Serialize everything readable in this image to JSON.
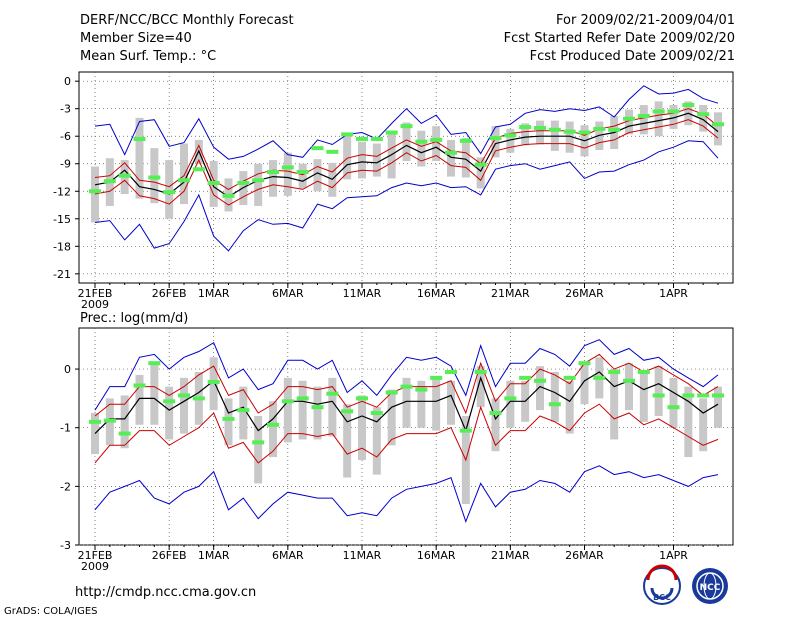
{
  "header": {
    "title": "DERF/NCC/BCC Monthly Forecast",
    "member_size": "Member Size=40",
    "variable": "Mean Surf. Temp.: °C",
    "period": "For 2009/02/21-2009/04/01",
    "start_date": "Fcst Started Refer Date 2009/02/20",
    "produced_date": "Fcst Produced Date 2009/02/21"
  },
  "footer": {
    "url": "http://cmdp.ncc.cma.gov.cn",
    "credit": "GrADS: COLA/IGES",
    "logo1_text": "BCC",
    "logo2_text": "NCC"
  },
  "colors": {
    "ensemble_mean": "#000000",
    "spread_band": "#cc0000",
    "extreme_envelope": "#0000cc",
    "member_box": "#c8c8c8",
    "marker": "#55ee55"
  },
  "chart_data": [
    {
      "type": "line",
      "title": "Mean Surf. Temp.: °C",
      "ylim": [
        -22,
        1
      ],
      "yticks": [
        0,
        -3,
        -6,
        -9,
        -12,
        -15,
        -18,
        -21
      ],
      "xtick_days": [
        0,
        5,
        8,
        13,
        18,
        23,
        28,
        33,
        39
      ],
      "xticks": [
        "21FEB",
        "26FEB",
        "1MAR",
        "6MAR",
        "11MAR",
        "16MAR",
        "21MAR",
        "26MAR",
        "1APR"
      ],
      "xsub": "2009",
      "series": [
        {
          "name": "ensemble mean",
          "values": [
            -11.3,
            -11.0,
            -9.7,
            -11.5,
            -11.8,
            -12.3,
            -11.0,
            -7.6,
            -11.5,
            -12.6,
            -11.6,
            -10.8,
            -10.4,
            -10.5,
            -10.9,
            -10.0,
            -10.7,
            -9.1,
            -8.8,
            -8.9,
            -8.0,
            -7.0,
            -7.8,
            -7.2,
            -8.3,
            -8.5,
            -9.8,
            -6.8,
            -6.4,
            -6.1,
            -6.0,
            -6.0,
            -6.0,
            -6.5,
            -5.9,
            -5.6,
            -4.9,
            -4.6,
            -4.3,
            -4.0,
            -3.5,
            -4.2,
            -5.5
          ]
        },
        {
          "name": "mean + sd",
          "values": [
            -10.5,
            -10.3,
            -8.9,
            -10.8,
            -11.0,
            -11.5,
            -10.3,
            -7.0,
            -10.8,
            -11.8,
            -10.9,
            -10.1,
            -9.7,
            -9.8,
            -10.2,
            -9.3,
            -9.9,
            -8.4,
            -8.0,
            -8.2,
            -7.3,
            -6.4,
            -7.1,
            -6.6,
            -7.6,
            -7.8,
            -9.0,
            -6.2,
            -5.7,
            -5.5,
            -5.4,
            -5.4,
            -5.4,
            -5.9,
            -5.2,
            -4.9,
            -4.3,
            -4.0,
            -3.7,
            -3.5,
            -3.0,
            -3.6,
            -4.9
          ]
        },
        {
          "name": "mean - sd",
          "values": [
            -12.3,
            -12.0,
            -10.8,
            -12.5,
            -12.8,
            -13.4,
            -12.0,
            -8.6,
            -12.4,
            -13.5,
            -12.6,
            -11.8,
            -11.3,
            -11.5,
            -11.8,
            -10.9,
            -11.6,
            -10.0,
            -9.7,
            -9.8,
            -8.9,
            -7.8,
            -8.7,
            -8.1,
            -9.2,
            -9.4,
            -10.8,
            -7.6,
            -7.2,
            -6.9,
            -6.8,
            -6.8,
            -6.8,
            -7.3,
            -6.7,
            -6.4,
            -5.6,
            -5.3,
            -5.0,
            -4.7,
            -4.2,
            -4.9,
            -6.2
          ]
        },
        {
          "name": "max",
          "values": [
            -4.9,
            -4.7,
            -8.0,
            -4.4,
            -4.2,
            -7.1,
            -6.7,
            -4.1,
            -7.2,
            -8.5,
            -8.2,
            -7.4,
            -6.5,
            -8.0,
            -8.3,
            -6.4,
            -6.9,
            -5.8,
            -5.6,
            -6.3,
            -4.6,
            -3.0,
            -4.6,
            -3.7,
            -5.8,
            -5.6,
            -7.9,
            -5.0,
            -4.7,
            -3.5,
            -3.1,
            -3.3,
            -3.0,
            -3.2,
            -2.8,
            -3.9,
            -2.0,
            -0.5,
            -1.4,
            -1.3,
            -0.9,
            -1.9,
            -2.4
          ]
        },
        {
          "name": "min",
          "values": [
            -15.4,
            -15.2,
            -17.3,
            -15.6,
            -18.2,
            -17.7,
            -15.3,
            -12.4,
            -16.9,
            -18.5,
            -16.3,
            -15.1,
            -15.6,
            -15.5,
            -16.0,
            -13.4,
            -13.9,
            -12.7,
            -12.6,
            -12.5,
            -11.6,
            -11.1,
            -11.4,
            -11.1,
            -11.6,
            -11.5,
            -12.4,
            -9.6,
            -9.2,
            -9.0,
            -9.6,
            -9.2,
            -8.8,
            -10.6,
            -9.9,
            -9.8,
            -9.1,
            -8.6,
            -7.7,
            -7.2,
            -6.5,
            -6.6,
            -8.4
          ]
        },
        {
          "name": "member box top",
          "values": [
            -9.3,
            -8.4,
            -8.6,
            -4.0,
            -7.3,
            -8.6,
            -6.8,
            -6.4,
            -8.7,
            -10.6,
            -9.8,
            -9.0,
            -8.6,
            -7.8,
            -9.0,
            -8.5,
            -8.9,
            -5.6,
            -6.6,
            -6.8,
            -5.4,
            -4.5,
            -5.4,
            -4.9,
            -6.4,
            -6.2,
            -8.3,
            -4.9,
            -5.2,
            -4.6,
            -4.3,
            -4.3,
            -4.4,
            -4.8,
            -4.4,
            -3.8,
            -3.1,
            -2.6,
            -2.2,
            -2.6,
            -2.2,
            -2.6,
            -3.4
          ]
        },
        {
          "name": "member box bottom",
          "values": [
            -15.4,
            -13.6,
            -12.3,
            -12.8,
            -13.3,
            -15.0,
            -13.4,
            -9.0,
            -13.7,
            -14.2,
            -13.5,
            -13.6,
            -12.6,
            -12.5,
            -11.7,
            -12.0,
            -12.6,
            -10.7,
            -10.6,
            -10.4,
            -10.6,
            -8.7,
            -9.3,
            -8.7,
            -10.4,
            -10.5,
            -11.7,
            -8.3,
            -7.8,
            -7.0,
            -6.9,
            -7.6,
            -7.8,
            -8.2,
            -7.5,
            -7.4,
            -5.8,
            -5.8,
            -6.0,
            -5.2,
            -4.8,
            -5.5,
            -7.0
          ]
        },
        {
          "name": "marker",
          "values": [
            -12.0,
            -10.9,
            -10.3,
            -6.3,
            -10.5,
            -12.1,
            -10.8,
            -9.6,
            -11.1,
            -12.5,
            -11.1,
            -10.8,
            -9.9,
            -9.4,
            -9.9,
            -7.3,
            -7.7,
            -5.8,
            -6.3,
            -6.3,
            -5.6,
            -4.9,
            -6.6,
            -6.4,
            -7.8,
            -6.5,
            -9.1,
            -6.2,
            -5.9,
            -5.0,
            -5.1,
            -5.3,
            -5.5,
            -5.6,
            -5.2,
            -5.3,
            -4.1,
            -3.8,
            -3.3,
            -3.3,
            -2.6,
            -3.6,
            -4.7
          ]
        }
      ]
    },
    {
      "type": "line",
      "title": "Prec.: log(mm/d)",
      "ylim": [
        -3,
        0.7
      ],
      "yticks": [
        0,
        -1,
        -2,
        -3
      ],
      "xtick_days": [
        0,
        5,
        8,
        13,
        18,
        23,
        28,
        33,
        39
      ],
      "xticks": [
        "21FEB",
        "26FEB",
        "1MAR",
        "6MAR",
        "11MAR",
        "16MAR",
        "21MAR",
        "26MAR",
        "1APR"
      ],
      "xsub": "2009",
      "series": [
        {
          "name": "ensemble mean",
          "values": [
            -1.1,
            -0.85,
            -0.85,
            -0.5,
            -0.5,
            -0.7,
            -0.55,
            -0.4,
            -0.2,
            -0.75,
            -0.65,
            -1.05,
            -0.85,
            -0.55,
            -0.55,
            -0.6,
            -0.55,
            -0.9,
            -0.8,
            -0.9,
            -0.65,
            -0.55,
            -0.55,
            -0.55,
            -0.45,
            -1.05,
            -0.15,
            -0.85,
            -0.55,
            -0.55,
            -0.3,
            -0.4,
            -0.55,
            -0.2,
            -0.05,
            -0.3,
            -0.2,
            -0.35,
            -0.25,
            -0.4,
            -0.55,
            -0.75,
            -0.6
          ]
        },
        {
          "name": "mean + sd",
          "values": [
            -0.8,
            -0.6,
            -0.6,
            -0.3,
            -0.3,
            -0.45,
            -0.3,
            -0.1,
            0.05,
            -0.45,
            -0.35,
            -0.75,
            -0.6,
            -0.3,
            -0.3,
            -0.35,
            -0.3,
            -0.65,
            -0.55,
            -0.65,
            -0.4,
            -0.3,
            -0.3,
            -0.3,
            -0.2,
            -0.75,
            0.1,
            -0.55,
            -0.25,
            -0.25,
            0.0,
            -0.1,
            -0.25,
            0.1,
            0.25,
            0.0,
            0.1,
            -0.05,
            0.05,
            -0.1,
            -0.25,
            -0.45,
            -0.3
          ]
        },
        {
          "name": "mean - sd",
          "values": [
            -1.6,
            -1.3,
            -1.3,
            -1.05,
            -1.05,
            -1.3,
            -1.15,
            -1.0,
            -0.75,
            -1.35,
            -1.25,
            -1.6,
            -1.4,
            -1.1,
            -1.1,
            -1.15,
            -1.1,
            -1.45,
            -1.35,
            -1.5,
            -1.2,
            -1.1,
            -1.1,
            -1.1,
            -1.0,
            -1.55,
            -0.65,
            -1.3,
            -1.05,
            -1.05,
            -0.8,
            -0.9,
            -1.05,
            -0.75,
            -0.6,
            -0.85,
            -0.75,
            -0.95,
            -0.85,
            -1.0,
            -1.15,
            -1.3,
            -1.2
          ]
        },
        {
          "name": "max",
          "values": [
            -0.7,
            -0.3,
            -0.3,
            0.2,
            0.25,
            0.0,
            0.2,
            0.3,
            0.45,
            -0.15,
            0.0,
            -0.35,
            -0.25,
            0.15,
            0.15,
            0.0,
            0.15,
            -0.4,
            -0.2,
            -0.45,
            -0.1,
            0.2,
            0.15,
            0.2,
            0.05,
            -0.45,
            0.4,
            -0.3,
            0.1,
            0.1,
            0.35,
            0.25,
            0.05,
            0.4,
            0.5,
            0.25,
            0.35,
            0.15,
            0.2,
            0.0,
            -0.15,
            -0.3,
            -0.1
          ]
        },
        {
          "name": "min",
          "values": [
            -2.4,
            -2.1,
            -2.0,
            -1.9,
            -2.2,
            -2.3,
            -2.1,
            -2.0,
            -1.75,
            -2.4,
            -2.2,
            -2.55,
            -2.3,
            -2.1,
            -2.15,
            -2.2,
            -2.2,
            -2.5,
            -2.45,
            -2.5,
            -2.2,
            -2.05,
            -2.0,
            -1.95,
            -1.85,
            -2.6,
            -1.95,
            -2.35,
            -2.1,
            -2.05,
            -1.9,
            -1.95,
            -2.1,
            -1.75,
            -1.65,
            -1.8,
            -1.75,
            -1.85,
            -1.8,
            -1.9,
            -2.0,
            -1.85,
            -1.8
          ]
        },
        {
          "name": "member box top",
          "values": [
            -0.75,
            -0.5,
            -0.45,
            -0.1,
            0.1,
            -0.3,
            -0.15,
            -0.05,
            0.2,
            -0.5,
            -0.3,
            -0.8,
            -0.55,
            -0.15,
            -0.2,
            -0.3,
            -0.15,
            -0.6,
            -0.45,
            -0.65,
            -0.35,
            -0.15,
            -0.2,
            -0.15,
            -0.2,
            -0.8,
            0.05,
            -0.5,
            -0.2,
            -0.2,
            0.05,
            -0.05,
            -0.2,
            0.1,
            0.2,
            0.0,
            0.1,
            -0.05,
            0.05,
            -0.15,
            -0.3,
            -0.5,
            -0.3
          ]
        },
        {
          "name": "member box bottom",
          "values": [
            -1.45,
            -1.3,
            -1.35,
            -0.95,
            -0.95,
            -1.2,
            -1.1,
            -0.95,
            -0.7,
            -1.3,
            -1.2,
            -1.95,
            -1.5,
            -1.25,
            -1.2,
            -1.2,
            -1.15,
            -1.85,
            -1.55,
            -1.8,
            -1.3,
            -1.0,
            -1.0,
            -1.05,
            -0.95,
            -2.3,
            -0.65,
            -1.4,
            -1.0,
            -0.9,
            -0.7,
            -0.9,
            -1.1,
            -0.6,
            -0.5,
            -1.2,
            -0.7,
            -0.9,
            -0.8,
            -1.0,
            -1.5,
            -1.4,
            -1.0
          ]
        },
        {
          "name": "marker",
          "values": [
            -0.9,
            -0.88,
            -1.1,
            -0.28,
            0.1,
            -0.55,
            -0.45,
            -0.5,
            -0.22,
            -0.85,
            -0.7,
            -1.25,
            -0.95,
            -0.55,
            -0.5,
            -0.65,
            -0.42,
            -0.72,
            -0.5,
            -0.75,
            -0.4,
            -0.3,
            -0.35,
            -0.15,
            -0.05,
            -1.05,
            -0.05,
            -0.75,
            -0.5,
            -0.15,
            -0.2,
            -0.6,
            -0.15,
            0.1,
            -0.15,
            -0.05,
            -0.2,
            -0.05,
            -0.45,
            -0.65,
            -0.45,
            -0.45,
            -0.45
          ]
        }
      ]
    }
  ]
}
